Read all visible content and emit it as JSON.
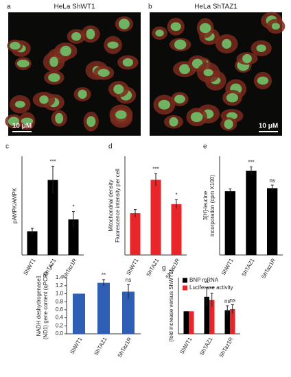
{
  "images": [
    {
      "panel": "a",
      "title": "HeLa ShWT1",
      "scale_bar": "10 μM"
    },
    {
      "panel": "b",
      "title": "HeLa ShTAZ1",
      "scale_bar": "10 μM"
    }
  ],
  "chart_data": [
    {
      "type": "bar",
      "panel": "c",
      "ylabel": [
        "pAMPK/AMPK"
      ],
      "categories": [
        "ShWT1",
        "ShTAZ1",
        "ShTaz1R"
      ],
      "series": [
        {
          "color": "#000000",
          "values": [
            1.2,
            3.8,
            1.8
          ],
          "errors": [
            0.15,
            0.7,
            0.4
          ],
          "annotations": [
            null,
            "***",
            "*"
          ]
        }
      ],
      "ylim": [
        0,
        5
      ]
    },
    {
      "type": "bar",
      "panel": "d",
      "ylabel": [
        "Mitochondrial density",
        "Fluorescence intensity per cell"
      ],
      "categories": [
        "ShWT1",
        "ShTAZ1",
        "ShTaz1R"
      ],
      "series": [
        {
          "color": "#e8262a",
          "values": [
            55,
            99,
            67
          ],
          "errors": [
            5,
            8,
            6
          ],
          "annotations": [
            null,
            "***",
            "*"
          ]
        }
      ],
      "ylim": [
        0,
        130
      ]
    },
    {
      "type": "bar",
      "panel": "e",
      "ylabel": [
        "3[H]-leucine",
        "incorporation (cpm X100)"
      ],
      "categories": [
        "ShWT1",
        "ShTAZ1",
        "ShTaz1R"
      ],
      "series": [
        {
          "color": "#000000",
          "values": [
            1.68,
            2.22,
            1.76
          ],
          "errors": [
            0.06,
            0.1,
            0.08
          ],
          "annotations": [
            null,
            "***",
            "ns"
          ]
        }
      ],
      "ylim": [
        0,
        2.6
      ]
    },
    {
      "type": "bar",
      "panel": "f",
      "ylabel": [
        "NADH deshydrogenase1",
        "(ND1) gene content (qPCR)"
      ],
      "categories": [
        "ShWT1",
        "ShTAZ1",
        "ShTaz1R"
      ],
      "series": [
        {
          "color": "#2e5fb4",
          "values": [
            1.0,
            1.27,
            1.05
          ],
          "errors": [
            null,
            0.08,
            0.18
          ],
          "annotations": [
            null,
            "**",
            "ns"
          ]
        }
      ],
      "ylim": [
        0,
        1.4
      ],
      "yticks": [
        {
          "value": 0,
          "label": "0.0"
        },
        0.2,
        0.4,
        0.6,
        0.8,
        {
          "value": 1,
          "label": "1.0"
        },
        1.2,
        1.4
      ]
    },
    {
      "type": "bar",
      "panel": "g",
      "ylabel": [
        "(fold increase versus ShWT1)"
      ],
      "categories": [
        "ShWT1",
        "ShTAZ1",
        "ShTaz1R"
      ],
      "series": [
        {
          "name": "BNP mRNA",
          "color": "#000000",
          "values": [
            1,
            1.65,
            1.05
          ],
          "errors": [
            null,
            0.4,
            0.2
          ],
          "annotations": [
            null,
            "**",
            "ns"
          ]
        },
        {
          "name": "Luciferase activity",
          "color": "#e8262a",
          "values": [
            1,
            1.5,
            1.1
          ],
          "errors": [
            null,
            0.3,
            0.2
          ],
          "annotations": [
            null,
            "**",
            "ns"
          ]
        }
      ],
      "ylim": [
        0,
        2.5
      ],
      "legend": "upper left"
    }
  ]
}
